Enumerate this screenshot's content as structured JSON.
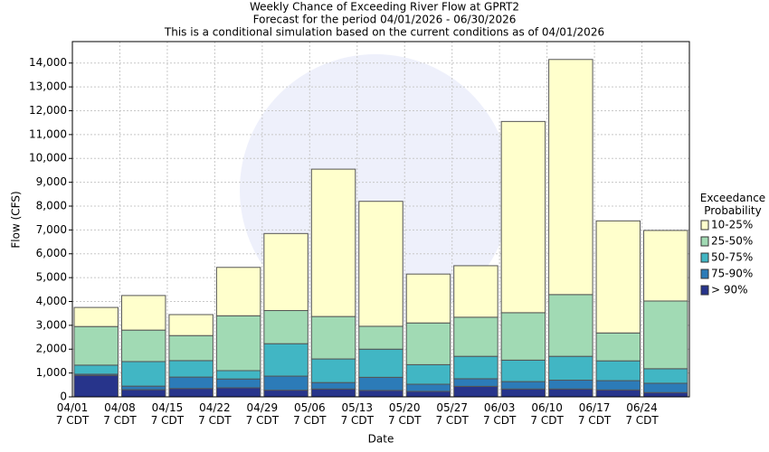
{
  "chart_data": {
    "type": "stacked_bar",
    "title": "Weekly Chance of Exceeding River Flow at GPRT2",
    "subtitle": "Forecast for the period 04/01/2026 - 06/30/2026",
    "note": "This is a conditional simulation based on the current conditions as of 04/01/2026",
    "x_label": "Date",
    "y_label": "Flow (CFS)",
    "legend_title": "Exceedance\nProbability",
    "categories": [
      "04/01\n7 CDT",
      "04/08\n7 CDT",
      "04/15\n7 CDT",
      "04/22\n7 CDT",
      "04/29\n7 CDT",
      "05/06\n7 CDT",
      "05/13\n7 CDT",
      "05/20\n7 CDT",
      "05/27\n7 CDT",
      "06/03\n7 CDT",
      "06/10\n7 CDT",
      "06/17\n7 CDT",
      "06/24\n7 CDT"
    ],
    "series": [
      {
        "name": "> 90%",
        "color": "#27348b",
        "values": [
          900,
          300,
          350,
          380,
          280,
          330,
          270,
          230,
          440,
          330,
          330,
          290,
          180
        ]
      },
      {
        "name": "75-90%",
        "color": "#2c7bb8",
        "values": [
          50,
          150,
          480,
          370,
          590,
          270,
          550,
          300,
          320,
          310,
          370,
          390,
          390
        ]
      },
      {
        "name": "50-75%",
        "color": "#41b6c4",
        "values": [
          380,
          1030,
          690,
          350,
          1360,
          990,
          1180,
          820,
          940,
          900,
          1000,
          830,
          610
        ]
      },
      {
        "name": "25-50%",
        "color": "#a1dab4",
        "values": [
          1620,
          1320,
          1050,
          2300,
          1390,
          1780,
          960,
          1750,
          1640,
          1990,
          2590,
          1170,
          2840
        ]
      },
      {
        "name": "10-25%",
        "color": "#ffffcc",
        "values": [
          800,
          1450,
          880,
          2030,
          3230,
          6180,
          5240,
          2050,
          2160,
          8020,
          9860,
          4700,
          2960
        ]
      }
    ],
    "ylim": [
      0,
      14900
    ],
    "yticks": [
      0,
      {
        "value": 1000,
        "label": "1,000"
      },
      {
        "value": 2000,
        "label": "2,000"
      },
      {
        "value": 3000,
        "label": "3,000"
      },
      {
        "value": 4000,
        "label": "4,000"
      },
      {
        "value": 5000,
        "label": "5,000"
      },
      {
        "value": 6000,
        "label": "6,000"
      },
      {
        "value": 7000,
        "label": "7,000"
      },
      {
        "value": 8000,
        "label": "8,000"
      },
      {
        "value": 9000,
        "label": "9,000"
      },
      {
        "value": 10000,
        "label": "10,000"
      },
      {
        "value": 11000,
        "label": "11,000"
      },
      {
        "value": 12000,
        "label": "12,000"
      },
      {
        "value": 13000,
        "label": "13,000"
      },
      {
        "value": 14000,
        "label": "14,000"
      }
    ],
    "grid": true,
    "legend_position": "right"
  }
}
